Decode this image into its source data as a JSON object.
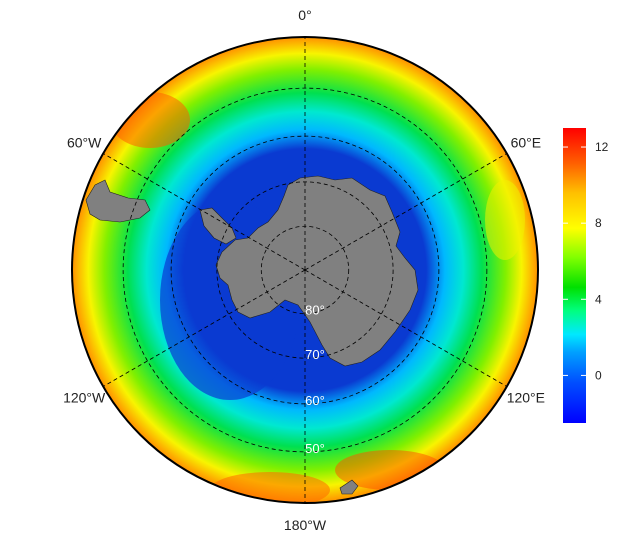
{
  "map": {
    "projection": "south polar stereographic",
    "longitude_labels": [
      {
        "lon": 0,
        "text": "0°"
      },
      {
        "lon": 60,
        "text": "60°E"
      },
      {
        "lon": 120,
        "text": "120°E"
      },
      {
        "lon": 180,
        "text": "180°W"
      },
      {
        "lon": -120,
        "text": "120°W"
      },
      {
        "lon": -60,
        "text": "60°W"
      }
    ],
    "latitude_labels": [
      {
        "lat": -80,
        "text": "80°"
      },
      {
        "lat": -70,
        "text": "70°"
      },
      {
        "lat": -60,
        "text": "60°"
      },
      {
        "lat": -50,
        "text": "50°"
      }
    ],
    "outer_latitude": -40,
    "graticule_style": "dashed",
    "land_color": "#808080",
    "ocean_field_description_colors": [
      "#0a3ad1",
      "#00c8ff",
      "#00e05a",
      "#ffff00",
      "#ff2000"
    ]
  },
  "colorbar": {
    "min": -2.5,
    "max": 13,
    "ticks": [
      0,
      4,
      8,
      12
    ],
    "tick_labels": [
      "0",
      "4",
      "8",
      "12"
    ],
    "colors": [
      "#0000ff",
      "#0050ff",
      "#00a0ff",
      "#00e8ff",
      "#00ff80",
      "#00e000",
      "#80ff00",
      "#ffff00",
      "#ffc000",
      "#ff6000",
      "#ff0000"
    ]
  }
}
